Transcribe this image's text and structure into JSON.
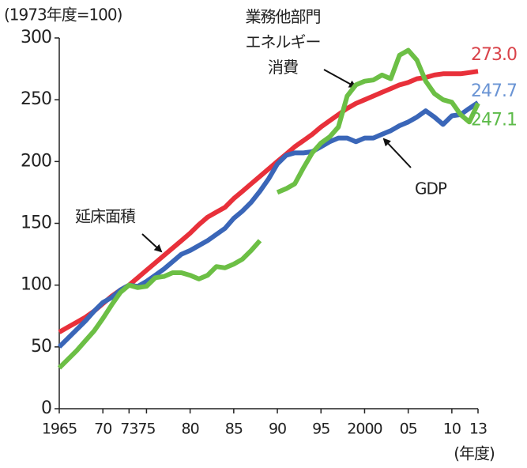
{
  "chart_data": {
    "type": "line",
    "ylabel": "(1973年度=100)",
    "xlabel": "(年度)",
    "x": [
      1965,
      1966,
      1967,
      1968,
      1969,
      1970,
      1971,
      1972,
      1973,
      1974,
      1975,
      1976,
      1977,
      1978,
      1979,
      1980,
      1981,
      1982,
      1983,
      1984,
      1985,
      1986,
      1987,
      1988,
      1989,
      1990,
      1991,
      1992,
      1993,
      1994,
      1995,
      1996,
      1997,
      1998,
      1999,
      2000,
      2001,
      2002,
      2003,
      2004,
      2005,
      2006,
      2007,
      2008,
      2009,
      2010,
      2011,
      2012,
      2013
    ],
    "xlim": [
      1965,
      2013
    ],
    "xticks": [
      1965,
      {
        "value": 1970,
        "label": "70"
      },
      {
        "value": 1973,
        "label": "73"
      },
      {
        "value": 1975,
        "label": "75"
      },
      {
        "value": 1980,
        "label": "80"
      },
      {
        "value": 1985,
        "label": "85"
      },
      {
        "value": 1990,
        "label": "90"
      },
      {
        "value": 1995,
        "label": "95"
      },
      2000,
      {
        "value": 2005,
        "label": "05"
      },
      {
        "value": 2010,
        "label": "10"
      },
      {
        "value": 2013,
        "label": "13"
      }
    ],
    "ylim": [
      0,
      300
    ],
    "yticks": [
      0,
      50,
      100,
      150,
      200,
      250,
      300
    ],
    "series": [
      {
        "name": "延床面積",
        "color": "#e8303a",
        "label_color": "#d9434a",
        "values": [
          62,
          66,
          70,
          74,
          79,
          85,
          91,
          96,
          100,
          106,
          112,
          118,
          124,
          130,
          136,
          142,
          149,
          155,
          159,
          163,
          170,
          176,
          182,
          188,
          194,
          200,
          206,
          212,
          217,
          222,
          228,
          233,
          238,
          243,
          247,
          250,
          253,
          256,
          259,
          262,
          264,
          267,
          268,
          270,
          271,
          271,
          271,
          272,
          273
        ],
        "value_labels": [
          null,
          null,
          null,
          null,
          null,
          null,
          null,
          null,
          null,
          null,
          null,
          null,
          null,
          null,
          null,
          null,
          null,
          null,
          null,
          null,
          null,
          null,
          null,
          null,
          null,
          null,
          null,
          null,
          null,
          null,
          null,
          null,
          null,
          null,
          null,
          null,
          null,
          null,
          null,
          null,
          null,
          null,
          null,
          null,
          null,
          null,
          null,
          null,
          "273.0"
        ]
      },
      {
        "name": "GDP",
        "color": "#3a66b8",
        "label_color": "#6a94d4",
        "values": [
          50,
          57,
          64,
          71,
          79,
          86,
          90,
          96,
          100,
          99,
          103,
          108,
          113,
          119,
          125,
          128,
          132,
          136,
          141,
          146,
          154,
          160,
          167,
          176,
          186,
          198,
          205,
          207,
          207,
          208,
          212,
          216,
          219,
          219,
          216,
          219,
          219,
          222,
          225,
          229,
          232,
          236,
          241,
          236,
          230,
          237,
          238,
          243,
          247.7
        ],
        "value_labels": [
          null,
          null,
          null,
          null,
          null,
          null,
          null,
          null,
          null,
          null,
          null,
          null,
          null,
          null,
          null,
          null,
          null,
          null,
          null,
          null,
          null,
          null,
          null,
          null,
          null,
          null,
          null,
          null,
          null,
          null,
          null,
          null,
          null,
          null,
          null,
          null,
          null,
          null,
          null,
          null,
          null,
          null,
          null,
          null,
          null,
          null,
          null,
          null,
          "247.7"
        ]
      },
      {
        "name": "業務他部門\nエネルギー\n消費",
        "color": "#6cbf45",
        "label_color": "#5dbb4a",
        "values": [
          33,
          40,
          47,
          55,
          63,
          73,
          84,
          94,
          100,
          98,
          99,
          106,
          107,
          110,
          110,
          108,
          105,
          108,
          115,
          114,
          117,
          121,
          128,
          136,
          null,
          175,
          178,
          182,
          195,
          207,
          215,
          220,
          228,
          253,
          262,
          265,
          266,
          270,
          267,
          286,
          290,
          282,
          265,
          255,
          250,
          248,
          238,
          232,
          247.1
        ],
        "value_labels": [
          null,
          null,
          null,
          null,
          null,
          null,
          null,
          null,
          null,
          null,
          null,
          null,
          null,
          null,
          null,
          null,
          null,
          null,
          null,
          null,
          null,
          null,
          null,
          null,
          null,
          null,
          null,
          null,
          null,
          null,
          null,
          null,
          null,
          null,
          null,
          null,
          null,
          null,
          null,
          null,
          null,
          null,
          null,
          null,
          null,
          null,
          null,
          null,
          "247.1"
        ]
      }
    ]
  }
}
